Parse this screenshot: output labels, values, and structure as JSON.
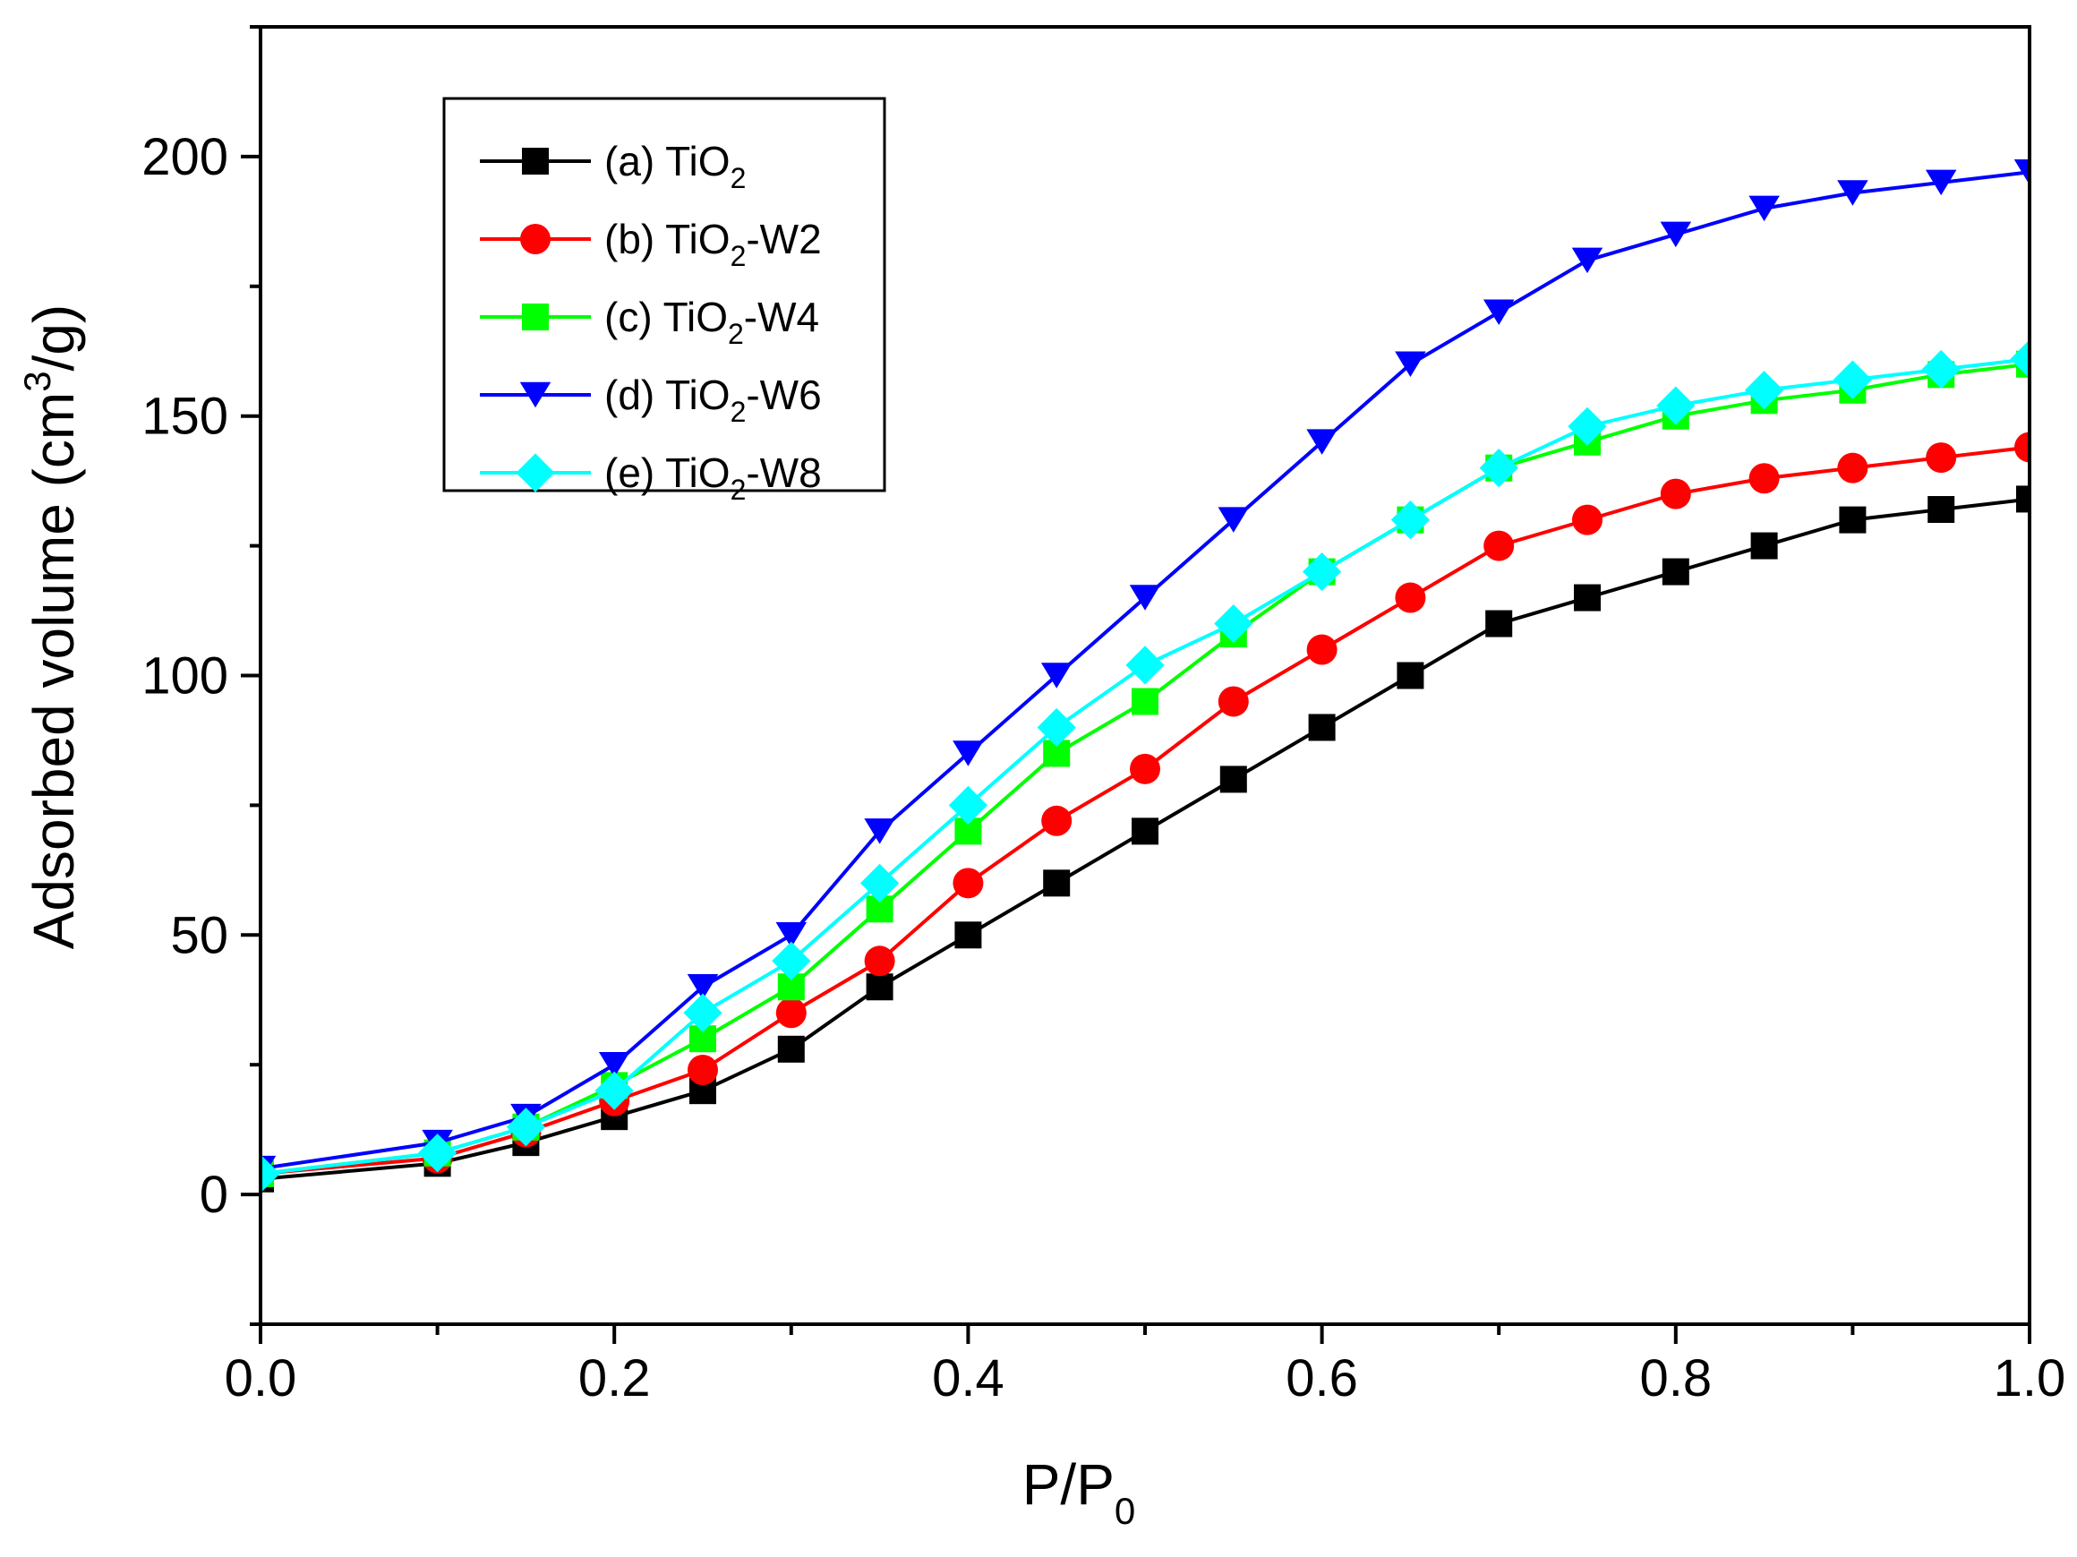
{
  "chart_data": {
    "type": "line",
    "title": "",
    "xlabel": {
      "main": "P/P",
      "sub": "0"
    },
    "ylabel": {
      "main": "Adsorbed volume (cm",
      "sup": "3",
      "tail": "/g)"
    },
    "xlim": [
      0.0,
      1.0
    ],
    "ylim": [
      -25,
      225
    ],
    "xticks": [
      0.0,
      0.2,
      0.4,
      0.6,
      0.8,
      1.0
    ],
    "xtick_labels": [
      "0.0",
      "0.2",
      "0.4",
      "0.6",
      "0.8",
      "1.0"
    ],
    "yticks": [
      0,
      50,
      100,
      150,
      200
    ],
    "ytick_labels": [
      "0",
      "50",
      "100",
      "150",
      "200"
    ],
    "grid": false,
    "legend_position": "top-left",
    "x": [
      0.0,
      0.1,
      0.15,
      0.2,
      0.25,
      0.3,
      0.35,
      0.4,
      0.45,
      0.5,
      0.55,
      0.6,
      0.65,
      0.7,
      0.75,
      0.8,
      0.85,
      0.9,
      0.95,
      1.0
    ],
    "series": [
      {
        "name": "(a) TiO",
        "sub": "2",
        "tail": "",
        "color": "#000000",
        "marker": "square",
        "values": [
          3,
          6,
          10,
          15,
          20,
          28,
          40,
          50,
          60,
          70,
          80,
          90,
          100,
          110,
          115,
          120,
          125,
          130,
          132,
          134
        ]
      },
      {
        "name": "(b) TiO",
        "sub": "2",
        "tail": "-W2",
        "color": "#ff0000",
        "marker": "circle",
        "values": [
          4,
          7,
          12,
          18,
          24,
          35,
          45,
          60,
          72,
          82,
          95,
          105,
          115,
          125,
          130,
          135,
          138,
          140,
          142,
          144
        ]
      },
      {
        "name": "(c) TiO",
        "sub": "2",
        "tail": "-W4",
        "color": "#00ff00",
        "marker": "square",
        "values": [
          4,
          8,
          13,
          21,
          30,
          40,
          55,
          70,
          85,
          95,
          108,
          120,
          130,
          140,
          145,
          150,
          153,
          155,
          158,
          160
        ]
      },
      {
        "name": "(d) TiO",
        "sub": "2",
        "tail": "-W6",
        "color": "#0000ff",
        "marker": "triangle-down",
        "values": [
          5,
          10,
          15,
          25,
          40,
          50,
          70,
          85,
          100,
          115,
          130,
          145,
          160,
          170,
          180,
          185,
          190,
          193,
          195,
          197
        ]
      },
      {
        "name": "(e) TiO",
        "sub": "2",
        "tail": "-W8",
        "color": "#00ffff",
        "marker": "diamond",
        "values": [
          4,
          8,
          13,
          20,
          35,
          45,
          60,
          75,
          90,
          102,
          110,
          120,
          130,
          140,
          148,
          152,
          155,
          157,
          159,
          161
        ]
      }
    ]
  }
}
